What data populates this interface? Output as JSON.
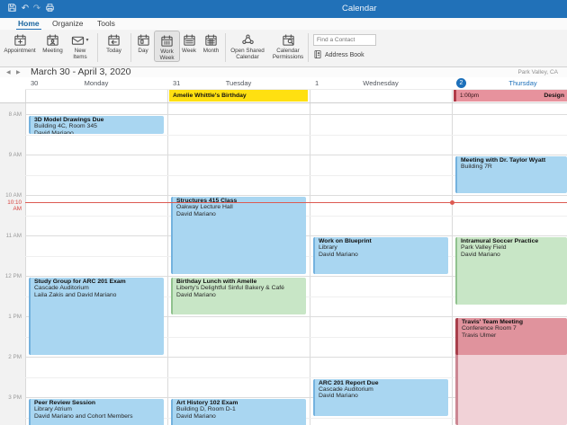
{
  "titlebar": {
    "title": "Calendar",
    "window_icons": [
      "save-icon",
      "undo-icon",
      "redo-icon",
      "print-icon"
    ]
  },
  "menubar": {
    "tabs": [
      {
        "label": "Home",
        "active": true
      },
      {
        "label": "Organize",
        "active": false
      },
      {
        "label": "Tools",
        "active": false
      }
    ]
  },
  "ribbon": {
    "groups": [
      {
        "buttons": [
          {
            "label": "Appointment",
            "icon": "calendar-plus-icon"
          },
          {
            "label": "Meeting",
            "icon": "calendar-person-icon"
          },
          {
            "label": "New Items",
            "icon": "envelope-icon",
            "caret": true
          }
        ]
      },
      {
        "buttons": [
          {
            "label": "Today",
            "icon": "calendar-today-icon"
          }
        ]
      },
      {
        "buttons": [
          {
            "label": "Day",
            "icon": "calendar-day-icon"
          },
          {
            "label": "Work Week",
            "icon": "calendar-workweek-icon",
            "selected": true
          },
          {
            "label": "Week",
            "icon": "calendar-week-icon"
          },
          {
            "label": "Month",
            "icon": "calendar-month-icon"
          }
        ]
      },
      {
        "buttons": [
          {
            "label": "Open Shared Calendar",
            "icon": "people-icon"
          },
          {
            "label": "Calendar Permissions",
            "icon": "calendar-search-icon"
          }
        ]
      }
    ],
    "find_contact_placeholder": "Find a Contact",
    "address_book_label": "Address Book"
  },
  "subheader": {
    "date_range": "March 30 - April 3, 2020",
    "location": "Park Valley, CA"
  },
  "calendar": {
    "days": [
      {
        "number": "30",
        "name": "Monday",
        "today": false
      },
      {
        "number": "31",
        "name": "Tuesday",
        "today": false
      },
      {
        "number": "1",
        "name": "Wednesday",
        "today": false
      },
      {
        "number": "2",
        "name": "Thursday",
        "today": true
      }
    ],
    "time_labels": [
      "8 AM",
      "9 AM",
      "10 AM",
      "11 AM",
      "12 PM",
      "1 PM",
      "2 PM",
      "3 PM"
    ],
    "current_time_label": "10:10 AM",
    "allday_events": [
      {
        "day": 1,
        "title": "Amelie Whittle's Birthday",
        "time": "",
        "color": "yellow"
      },
      {
        "day": 3,
        "title": "Design",
        "time": "1:00pm",
        "color": "pink"
      }
    ],
    "events": [
      {
        "day": 0,
        "title": "3D Model Drawings Due",
        "lines": [
          "Building 4C, Room 345",
          "David Mariano"
        ],
        "start": "8:00",
        "end": "8:30",
        "color": "blue"
      },
      {
        "day": 0,
        "title": "Study Group for ARC 201 Exam",
        "lines": [
          "Cascade Auditorium",
          "Laila Zakis and David Mariano"
        ],
        "start": "12:00",
        "end": "14:00",
        "color": "blue"
      },
      {
        "day": 0,
        "title": "Peer Review Session",
        "lines": [
          "Library Atrium",
          "David Mariano and Cohort Members"
        ],
        "start": "15:00",
        "end": "16:10",
        "color": "blue"
      },
      {
        "day": 1,
        "title": "Structures 415 Class",
        "lines": [
          "Oakway Lecture Hall",
          "David Mariano"
        ],
        "start": "10:00",
        "end": "12:00",
        "color": "blue"
      },
      {
        "day": 1,
        "title": "Birthday Lunch with Amelle",
        "lines": [
          "Liberty's Delightful Sinful Bakery & Café",
          "David Mariano"
        ],
        "start": "12:00",
        "end": "13:00",
        "color": "green"
      },
      {
        "day": 1,
        "title": "Art History 102 Exam",
        "lines": [
          "Building D, Room D-1",
          "David Mariano"
        ],
        "start": "15:00",
        "end": "16:10",
        "color": "blue"
      },
      {
        "day": 2,
        "title": "Work on Blueprint",
        "lines": [
          "Library",
          "David Mariano"
        ],
        "start": "11:00",
        "end": "12:00",
        "color": "blue"
      },
      {
        "day": 2,
        "title": "ARC 201 Report Due",
        "lines": [
          "Cascade Auditorium",
          "David Mariano"
        ],
        "start": "14:30",
        "end": "15:30",
        "color": "blue"
      },
      {
        "day": 3,
        "title": "Meeting with Dr. Taylor Wyatt",
        "lines": [
          "Building 7R"
        ],
        "start": "9:00",
        "end": "10:00",
        "color": "blue"
      },
      {
        "day": 3,
        "title": "Intramural Soccer Practice",
        "lines": [
          "Park Valley Field",
          "David Mariano"
        ],
        "start": "11:00",
        "end": "12:45",
        "color": "green"
      },
      {
        "day": 3,
        "title": "",
        "lines": [],
        "start": "13:00",
        "end": "16:10",
        "color": "lightpink"
      },
      {
        "day": 3,
        "title": "Travis' Team Meeting",
        "lines": [
          "Conference Room 7",
          "Travis Ulmer"
        ],
        "start": "13:00",
        "end": "14:00",
        "color": "red"
      }
    ]
  },
  "colors": {
    "titlebar_blue": "#2171b8",
    "today_blue": "#1d70ba",
    "current_time_red": "#dd5a52",
    "event_blue": "#a9d6f1",
    "event_green": "#c8e6c6",
    "event_red": "#e0939d",
    "event_lightpink": "#f1d2d7",
    "banner_yellow": "#ffe011",
    "banner_pink": "#e7929d"
  }
}
